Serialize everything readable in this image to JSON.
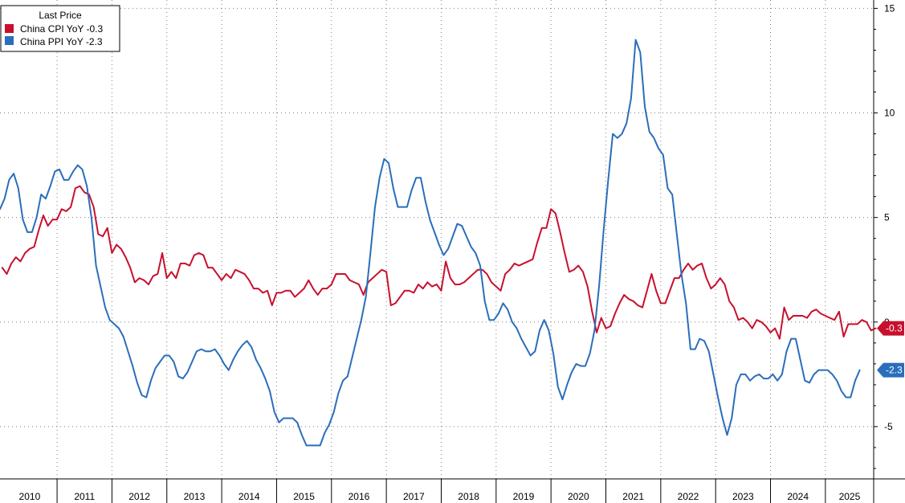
{
  "chart_data": {
    "type": "line",
    "legend_title": "Last Price",
    "legend_position": "top-left",
    "x_tick_labels": [
      "2010",
      "2011",
      "2012",
      "2013",
      "2014",
      "2015",
      "2016",
      "2017",
      "2018",
      "2019",
      "2020",
      "2021",
      "2022",
      "2023",
      "2024",
      "2025"
    ],
    "y_ticks": [
      -5,
      0,
      5,
      10,
      15
    ],
    "y_tick_labels": [
      "-5",
      "0",
      "5",
      "10",
      "15"
    ],
    "ylim": [
      -7.5,
      15.4
    ],
    "xlim": [
      2009.96,
      2025.88
    ],
    "grid": true,
    "series": [
      {
        "name": "China CPI YoY",
        "legend_label": "China CPI YoY",
        "last_label": "-0.3",
        "color": "#c8102e",
        "x_start": 2010.0,
        "step": 0.08333,
        "values": [
          2.6,
          2.3,
          2.8,
          3.1,
          2.9,
          3.3,
          3.5,
          3.6,
          4.4,
          5.1,
          4.6,
          4.9,
          4.9,
          5.4,
          5.3,
          5.5,
          6.4,
          6.5,
          6.2,
          6.1,
          5.5,
          4.2,
          4.1,
          4.5,
          3.3,
          3.7,
          3.5,
          3.1,
          2.6,
          1.9,
          2.1,
          2.0,
          1.8,
          2.2,
          2.3,
          3.3,
          2.1,
          2.4,
          2.1,
          2.8,
          2.8,
          2.7,
          3.2,
          3.3,
          3.2,
          2.6,
          2.6,
          2.3,
          2.0,
          2.3,
          2.1,
          2.5,
          2.4,
          2.3,
          2.0,
          1.6,
          1.6,
          1.4,
          1.5,
          0.8,
          1.4,
          1.4,
          1.5,
          1.5,
          1.2,
          1.4,
          1.6,
          2.0,
          1.6,
          1.3,
          1.6,
          1.6,
          1.8,
          2.3,
          2.3,
          2.3,
          2.0,
          1.9,
          1.8,
          1.3,
          1.9,
          2.1,
          2.3,
          2.5,
          2.4,
          0.8,
          0.9,
          1.2,
          1.5,
          1.5,
          1.4,
          1.8,
          1.6,
          1.9,
          1.7,
          1.8,
          1.5,
          2.9,
          2.1,
          1.8,
          1.8,
          1.9,
          2.1,
          2.3,
          2.5,
          2.5,
          2.3,
          1.9,
          1.7,
          1.5,
          2.3,
          2.5,
          2.8,
          2.7,
          2.8,
          2.9,
          3.0,
          3.8,
          4.5,
          4.5,
          5.4,
          5.2,
          4.3,
          3.3,
          2.4,
          2.5,
          2.7,
          2.4,
          1.7,
          0.5,
          -0.5,
          0.2,
          -0.3,
          -0.2,
          0.4,
          0.9,
          1.3,
          1.1,
          1.0,
          0.8,
          0.7,
          1.5,
          2.3,
          1.5,
          0.9,
          0.9,
          1.5,
          2.1,
          2.1,
          2.5,
          2.8,
          2.5,
          2.7,
          2.8,
          2.1,
          1.6,
          1.8,
          2.1,
          1.8,
          1.0,
          0.7,
          0.1,
          0.2,
          0.0,
          -0.3,
          0.1,
          0.0,
          -0.2,
          -0.5,
          -0.3,
          -0.8,
          0.7,
          0.1,
          0.3,
          0.3,
          0.3,
          0.2,
          0.5,
          0.6,
          0.4,
          0.3,
          0.2,
          0.1,
          0.5,
          -0.7,
          -0.1,
          -0.1,
          -0.1,
          0.1,
          0.0,
          -0.4,
          -0.3
        ]
      },
      {
        "name": "China PPI YoY",
        "legend_label": "China PPI YoY",
        "last_label": "-2.3",
        "color": "#2a6ebb",
        "x_start": 2009.96,
        "step": 0.08333,
        "values": [
          5.4,
          5.9,
          6.8,
          7.1,
          6.4,
          4.9,
          4.3,
          4.3,
          5.0,
          6.1,
          5.9,
          6.5,
          7.2,
          7.3,
          6.8,
          6.8,
          7.2,
          7.5,
          7.3,
          6.5,
          5.0,
          2.7,
          1.7,
          0.7,
          0.1,
          -0.1,
          -0.3,
          -0.7,
          -1.4,
          -2.1,
          -2.9,
          -3.5,
          -3.6,
          -2.8,
          -2.2,
          -1.9,
          -1.6,
          -1.6,
          -1.9,
          -2.6,
          -2.7,
          -2.4,
          -1.9,
          -1.4,
          -1.3,
          -1.4,
          -1.4,
          -1.3,
          -1.6,
          -2.0,
          -2.3,
          -1.8,
          -1.4,
          -1.1,
          -0.9,
          -1.2,
          -1.8,
          -2.2,
          -2.7,
          -3.3,
          -4.3,
          -4.8,
          -4.6,
          -4.6,
          -4.6,
          -4.8,
          -5.4,
          -5.9,
          -5.9,
          -5.9,
          -5.9,
          -5.3,
          -4.9,
          -4.3,
          -3.4,
          -2.8,
          -2.6,
          -1.7,
          -0.8,
          0.1,
          1.2,
          3.3,
          5.5,
          6.9,
          7.8,
          7.6,
          6.4,
          5.5,
          5.5,
          5.5,
          6.3,
          6.9,
          6.9,
          5.8,
          4.9,
          4.3,
          3.7,
          3.2,
          3.5,
          4.1,
          4.7,
          4.6,
          4.1,
          3.6,
          3.3,
          2.7,
          1.0,
          0.1,
          0.1,
          0.4,
          0.9,
          0.6,
          0.0,
          -0.3,
          -0.8,
          -1.2,
          -1.6,
          -1.4,
          -0.4,
          0.1,
          -0.4,
          -1.5,
          -3.1,
          -3.7,
          -3.0,
          -2.4,
          -2.0,
          -2.1,
          -2.1,
          -1.5,
          -0.4,
          1.7,
          4.4,
          6.8,
          9.0,
          8.8,
          9.0,
          9.5,
          10.7,
          13.5,
          12.9,
          10.3,
          9.1,
          8.8,
          8.3,
          8.0,
          6.4,
          6.1,
          4.2,
          2.3,
          0.9,
          -1.3,
          -1.3,
          -0.8,
          -0.9,
          -1.4,
          -2.5,
          -3.6,
          -4.6,
          -5.4,
          -4.6,
          -3.0,
          -2.5,
          -2.5,
          -2.8,
          -2.6,
          -2.5,
          -2.7,
          -2.7,
          -2.5,
          -2.8,
          -2.5,
          -1.4,
          -0.8,
          -0.8,
          -1.8,
          -2.8,
          -2.9,
          -2.5,
          -2.3,
          -2.3,
          -2.3,
          -2.5,
          -2.8,
          -3.3,
          -3.6,
          -3.6,
          -2.8,
          -2.3
        ]
      }
    ]
  }
}
